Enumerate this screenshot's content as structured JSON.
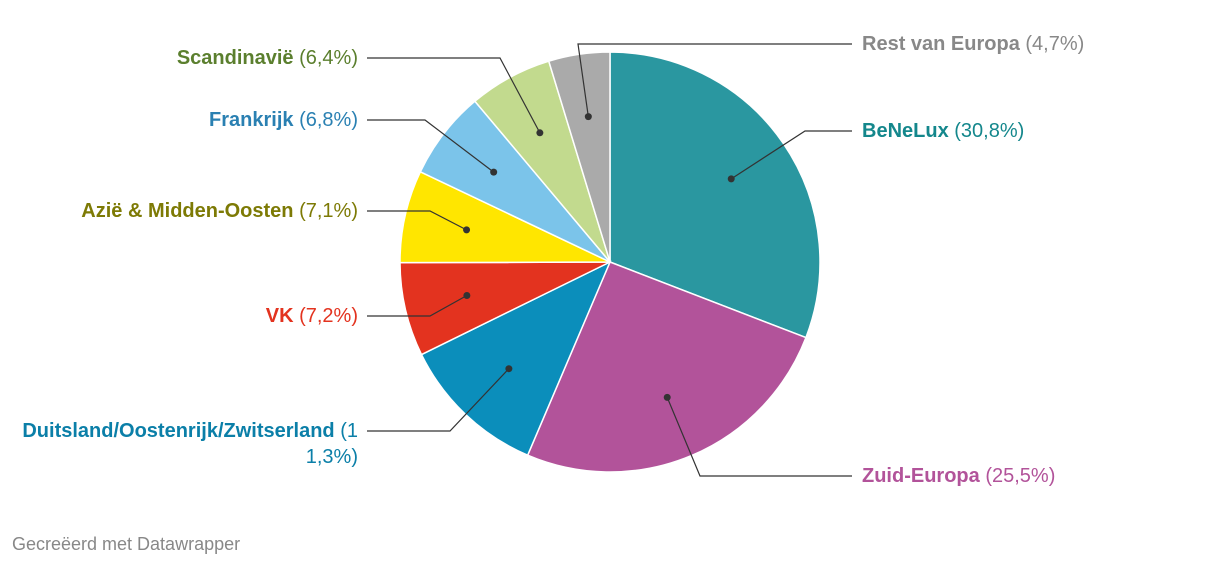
{
  "chart_data": {
    "type": "pie",
    "categories": [
      "BeNeLux",
      "Zuid-Europa",
      "Duitsland/Oostenrijk/Zwitserland",
      "VK",
      "Azië & Midden-Oosten",
      "Frankrijk",
      "Scandinavië",
      "Rest van Europa"
    ],
    "values": [
      30.8,
      25.5,
      11.3,
      7.2,
      7.1,
      6.8,
      6.4,
      4.7
    ],
    "value_labels": [
      "(30,8%)",
      "(25,5%)",
      "(11,3%)",
      "(7,2%)",
      "(7,1%)",
      "(6,8%)",
      "(6,4%)",
      "(4,7%)"
    ],
    "colors": [
      "#2a97a0",
      "#b2539a",
      "#0b8ebb",
      "#e3331f",
      "#ffe600",
      "#7bc4ea",
      "#c2da8e",
      "#aaaaaa"
    ],
    "label_colors": [
      "#14878c",
      "#b2539a",
      "#0b7fa8",
      "#e3331f",
      "#7d7a05",
      "#2a80b2",
      "#5b7f2e",
      "#888888"
    ],
    "credit": "Gecreëerd met Datawrapper"
  }
}
